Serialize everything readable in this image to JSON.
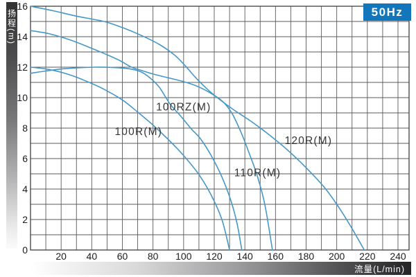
{
  "badge": {
    "label": "50Hz",
    "color": "#1276bd"
  },
  "chart_data": {
    "type": "line",
    "title": "",
    "xlabel": "流量(L/min)",
    "ylabel": "扬程(m)",
    "xlim": [
      0,
      247
    ],
    "ylim": [
      0,
      16
    ],
    "x_ticks": [
      20,
      40,
      60,
      80,
      100,
      120,
      140,
      160,
      180,
      200,
      220,
      240
    ],
    "y_ticks": [
      0,
      2,
      4,
      6,
      8,
      10,
      12,
      14,
      16
    ],
    "x_grid_step": 10,
    "y_grid_step": 1,
    "grid": "on",
    "legend_position": "inline-labels",
    "line_color": "#4597c8",
    "grid_color": "#59595b",
    "border_color": "#3e3f41",
    "tick_color": "#1b1b1b",
    "label_color": "#353535",
    "series": [
      {
        "name": "100R(M)",
        "label_pos": [
          55.0,
          7.55
        ],
        "points": [
          [
            0,
            12.0
          ],
          [
            12,
            11.85
          ],
          [
            24,
            11.55
          ],
          [
            36,
            11.1
          ],
          [
            48,
            10.55
          ],
          [
            60,
            9.85
          ],
          [
            70,
            9.05
          ],
          [
            80,
            8.2
          ],
          [
            90,
            7.25
          ],
          [
            100,
            6.2
          ],
          [
            110,
            4.95
          ],
          [
            118,
            3.6
          ],
          [
            125,
            2.0
          ],
          [
            130,
            0
          ]
        ]
      },
      {
        "name": "100RZ(M)",
        "label_pos": [
          82.0,
          9.15
        ],
        "points": [
          [
            0,
            11.6
          ],
          [
            10,
            11.75
          ],
          [
            20,
            11.88
          ],
          [
            30,
            11.95
          ],
          [
            42,
            12.0
          ],
          [
            54,
            11.98
          ],
          [
            64,
            11.9
          ],
          [
            72,
            11.7
          ],
          [
            78,
            11.3
          ],
          [
            84,
            10.7
          ],
          [
            91,
            9.6
          ],
          [
            98,
            8.8
          ],
          [
            105,
            7.95
          ],
          [
            111,
            7.3
          ],
          [
            118,
            6.2
          ],
          [
            125,
            4.8
          ],
          [
            131,
            3.2
          ],
          [
            135,
            1.7
          ],
          [
            138,
            0
          ]
        ]
      },
      {
        "name": "110R(M)",
        "label_pos": [
          133.0,
          4.85
        ],
        "points": [
          [
            0,
            14.4
          ],
          [
            12,
            14.2
          ],
          [
            24,
            13.85
          ],
          [
            36,
            13.4
          ],
          [
            48,
            12.9
          ],
          [
            58,
            12.45
          ],
          [
            66,
            12.0
          ],
          [
            72,
            11.8
          ],
          [
            80,
            11.55
          ],
          [
            90,
            11.3
          ],
          [
            100,
            11.05
          ],
          [
            110,
            10.7
          ],
          [
            120,
            10.15
          ],
          [
            126,
            9.7
          ],
          [
            132,
            8.9
          ],
          [
            138,
            7.6
          ],
          [
            143,
            6.3
          ],
          [
            148,
            4.9
          ],
          [
            153,
            3.0
          ],
          [
            158,
            0
          ]
        ]
      },
      {
        "name": "120R(M)",
        "label_pos": [
          166.0,
          6.95
        ],
        "points": [
          [
            0,
            16.0
          ],
          [
            15,
            15.7
          ],
          [
            30,
            15.35
          ],
          [
            48,
            15.0
          ],
          [
            60,
            14.6
          ],
          [
            72,
            14.1
          ],
          [
            84,
            13.5
          ],
          [
            94,
            12.8
          ],
          [
            101,
            12.1
          ],
          [
            108,
            11.3
          ],
          [
            115,
            10.6
          ],
          [
            122,
            10.0
          ],
          [
            132,
            9.25
          ],
          [
            144,
            8.45
          ],
          [
            156,
            7.55
          ],
          [
            168,
            6.55
          ],
          [
            180,
            5.4
          ],
          [
            192,
            4.1
          ],
          [
            202,
            2.7
          ],
          [
            210,
            1.4
          ],
          [
            218,
            0
          ]
        ]
      }
    ]
  }
}
